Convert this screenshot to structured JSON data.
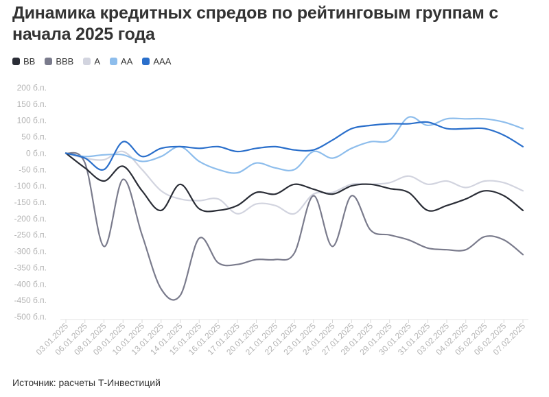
{
  "title": "Динамика кредитных спредов по рейтинговым группам с начала 2025 года",
  "source": "Источник: расчеты Т-Инвестиций",
  "chart_data": {
    "type": "line",
    "title": "Динамика кредитных спредов по рейтинговым группам с начала 2025 года",
    "xlabel": "",
    "ylabel": "",
    "ylim": [
      -500,
      200
    ],
    "yticks": [
      200,
      150,
      100,
      50,
      0,
      -50,
      -100,
      -150,
      -200,
      -250,
      -300,
      -350,
      -400,
      -450,
      -500
    ],
    "ytick_labels": [
      "200 б.п.",
      "150 б.п.",
      "100 б.п.",
      "50 б.п.",
      "0 б.п.",
      "-50 б.п.",
      "-100 б.п.",
      "-150 б.п.",
      "-200 б.п.",
      "-250 б.п.",
      "-300 б.п.",
      "-350 б.п.",
      "-400 б.п.",
      "-450 б.п.",
      "-500 б.п."
    ],
    "grid": false,
    "legend_position": "top-left",
    "categories": [
      "03.01.2025",
      "06.01.2025",
      "08.01.2025",
      "09.01.2025",
      "10.01.2025",
      "13.01.2025",
      "14.01.2025",
      "15.01.2025",
      "16.01.2025",
      "17.01.2025",
      "20.01.2025",
      "21.01.2025",
      "22.01.2025",
      "23.01.2025",
      "24.01.2025",
      "27.01.2025",
      "28.01.2025",
      "29.01.2025",
      "30.01.2025",
      "31.01.2025",
      "03.02.2025",
      "04.02.2025",
      "05.02.2025",
      "06.02.2025",
      "07.02.2025"
    ],
    "series": [
      {
        "name": "BB",
        "color": "#2a2d36",
        "values": [
          0,
          -45,
          -85,
          -40,
          -115,
          -175,
          -95,
          -170,
          -175,
          -160,
          -120,
          -125,
          -95,
          -110,
          -125,
          -100,
          -95,
          -108,
          -120,
          -175,
          -160,
          -140,
          -115,
          -130,
          -175
        ]
      },
      {
        "name": "BBB",
        "color": "#7a7b8c",
        "values": [
          0,
          -30,
          -285,
          -80,
          -250,
          -415,
          -435,
          -260,
          -335,
          -340,
          -325,
          -325,
          -305,
          -130,
          -285,
          -130,
          -235,
          -250,
          -265,
          -290,
          -295,
          -295,
          -255,
          -265,
          -310
        ]
      },
      {
        "name": "A",
        "color": "#d2d4df",
        "values": [
          0,
          -15,
          -20,
          5,
          -50,
          -115,
          -140,
          -145,
          -140,
          -185,
          -155,
          -160,
          -185,
          -125,
          -120,
          -95,
          -95,
          -90,
          -70,
          -95,
          -85,
          -105,
          -85,
          -90,
          -115
        ]
      },
      {
        "name": "AA",
        "color": "#8dbdec",
        "values": [
          0,
          -10,
          -5,
          -5,
          -25,
          -10,
          20,
          -25,
          -50,
          -60,
          -30,
          -45,
          -50,
          5,
          -15,
          15,
          35,
          40,
          110,
          85,
          105,
          105,
          105,
          95,
          75
        ]
      },
      {
        "name": "AAA",
        "color": "#2a6fcb",
        "values": [
          0,
          -15,
          -50,
          35,
          -10,
          15,
          20,
          15,
          20,
          5,
          15,
          20,
          10,
          10,
          40,
          75,
          85,
          90,
          90,
          95,
          75,
          75,
          75,
          55,
          20
        ]
      }
    ]
  }
}
